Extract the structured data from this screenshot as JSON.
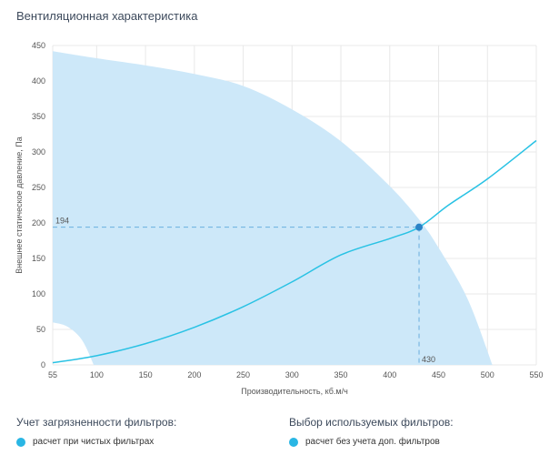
{
  "title": "Вентиляционная характеристика",
  "chart_data": {
    "type": "line",
    "xlabel": "Производительность, кб.м/ч",
    "ylabel": "Внешнее статическое давление, Па",
    "xlim": [
      55,
      550
    ],
    "ylim": [
      0,
      450
    ],
    "x_ticks": [
      "55",
      "100",
      "150",
      "200",
      "250",
      "300",
      "350",
      "400",
      "450",
      "500",
      "550"
    ],
    "y_ticks": [
      "0",
      "50",
      "100",
      "150",
      "200",
      "250",
      "300",
      "350",
      "400",
      "450"
    ],
    "region": {
      "name": "working-area",
      "upper": [
        [
          55,
          442
        ],
        [
          100,
          432
        ],
        [
          150,
          422
        ],
        [
          200,
          410
        ],
        [
          250,
          393
        ],
        [
          300,
          360
        ],
        [
          350,
          315
        ],
        [
          400,
          252
        ],
        [
          430,
          205
        ],
        [
          450,
          165
        ],
        [
          480,
          92
        ],
        [
          505,
          0
        ]
      ],
      "lower": [
        [
          55,
          60
        ],
        [
          70,
          54
        ],
        [
          85,
          35
        ],
        [
          97,
          0
        ]
      ]
    },
    "series": [
      {
        "name": "system-curve",
        "points": [
          [
            55,
            3
          ],
          [
            100,
            13
          ],
          [
            150,
            30
          ],
          [
            200,
            53
          ],
          [
            250,
            82
          ],
          [
            300,
            117
          ],
          [
            350,
            155
          ],
          [
            400,
            178
          ],
          [
            430,
            194
          ],
          [
            460,
            225
          ],
          [
            500,
            262
          ],
          [
            550,
            316
          ]
        ]
      }
    ],
    "operating_point": {
      "x": 430,
      "y": 194,
      "x_label": "430",
      "y_label": "194"
    }
  },
  "filters_contamination": {
    "label": "Учет загрязненности фильтров:",
    "selected": "расчет при чистых фильтрах"
  },
  "filters_selection": {
    "label": "Выбор используемых фильтров:",
    "selected": "расчет без учета доп. фильтров"
  },
  "colors": {
    "area": "#cde8f9",
    "curve": "#29c2e4",
    "point": "#2b83c6",
    "grid": "#e8e8e8",
    "dash": "#6aaede"
  }
}
